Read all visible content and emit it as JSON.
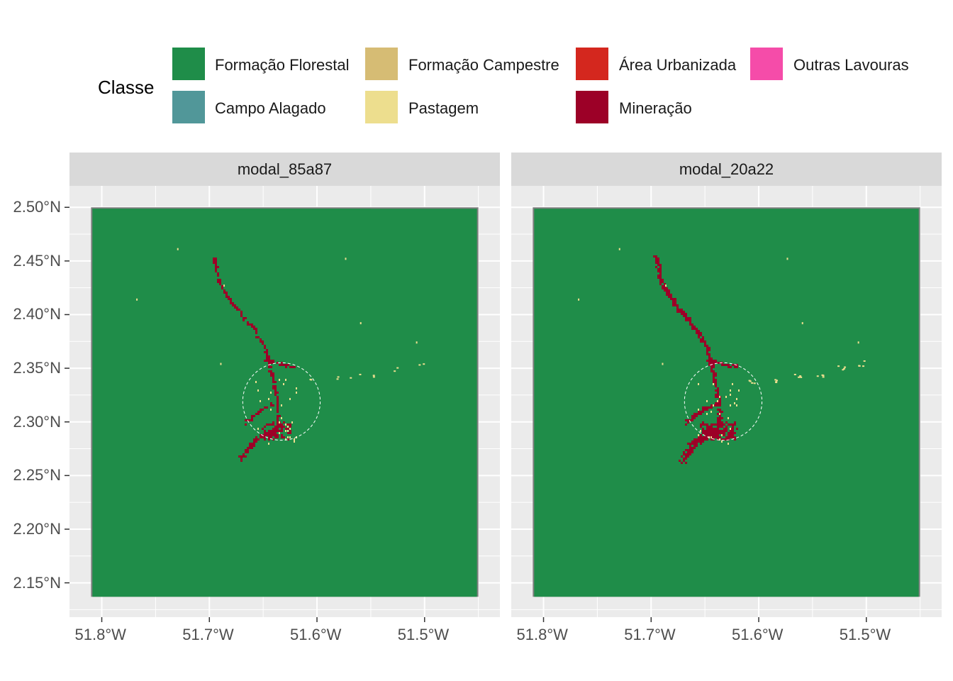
{
  "legend": {
    "title": "Classe",
    "items": [
      {
        "label": "Formação Florestal",
        "color": "#1f8d49"
      },
      {
        "label": "Formação Campestre",
        "color": "#d6bc74"
      },
      {
        "label": "Área Urbanizada",
        "color": "#d4271e"
      },
      {
        "label": "Outras Lavouras",
        "color": "#f54ca9"
      },
      {
        "label": "Campo Alagado",
        "color": "#519799"
      },
      {
        "label": "Pastagem",
        "color": "#edde8e"
      },
      {
        "label": "Mineração",
        "color": "#9c0027"
      }
    ]
  },
  "panels": [
    {
      "title": "modal_85a87"
    },
    {
      "title": "modal_20a22"
    }
  ],
  "axes": {
    "y_ticks": [
      {
        "value": 2.5,
        "label": "2.50°N"
      },
      {
        "value": 2.45,
        "label": "2.45°N"
      },
      {
        "value": 2.4,
        "label": "2.40°N"
      },
      {
        "value": 2.35,
        "label": "2.35°N"
      },
      {
        "value": 2.3,
        "label": "2.30°N"
      },
      {
        "value": 2.25,
        "label": "2.25°N"
      },
      {
        "value": 2.2,
        "label": "2.20°N"
      },
      {
        "value": 2.15,
        "label": "2.15°N"
      }
    ],
    "x_ticks": [
      {
        "value": -51.8,
        "label": "51.8°W"
      },
      {
        "value": -51.7,
        "label": "51.7°W"
      },
      {
        "value": -51.6,
        "label": "51.6°W"
      },
      {
        "value": -51.5,
        "label": "51.5°W"
      }
    ],
    "x_range": [
      -51.83,
      -51.43
    ],
    "y_range": [
      2.118,
      2.52
    ]
  },
  "map": {
    "extent": {
      "lon": [
        -51.81,
        -51.45
      ],
      "lat": [
        2.137,
        2.5
      ]
    },
    "buffer_circle": {
      "lon": -51.633,
      "lat": 2.319,
      "radius_deg": 0.036
    },
    "colors": {
      "forest": "#1f8d49",
      "mining": "#9c0027",
      "pasture": "#edde8e",
      "nodata": "#7f7f7f",
      "panel_bg": "#ebebeb",
      "grid": "#ffffff"
    }
  }
}
